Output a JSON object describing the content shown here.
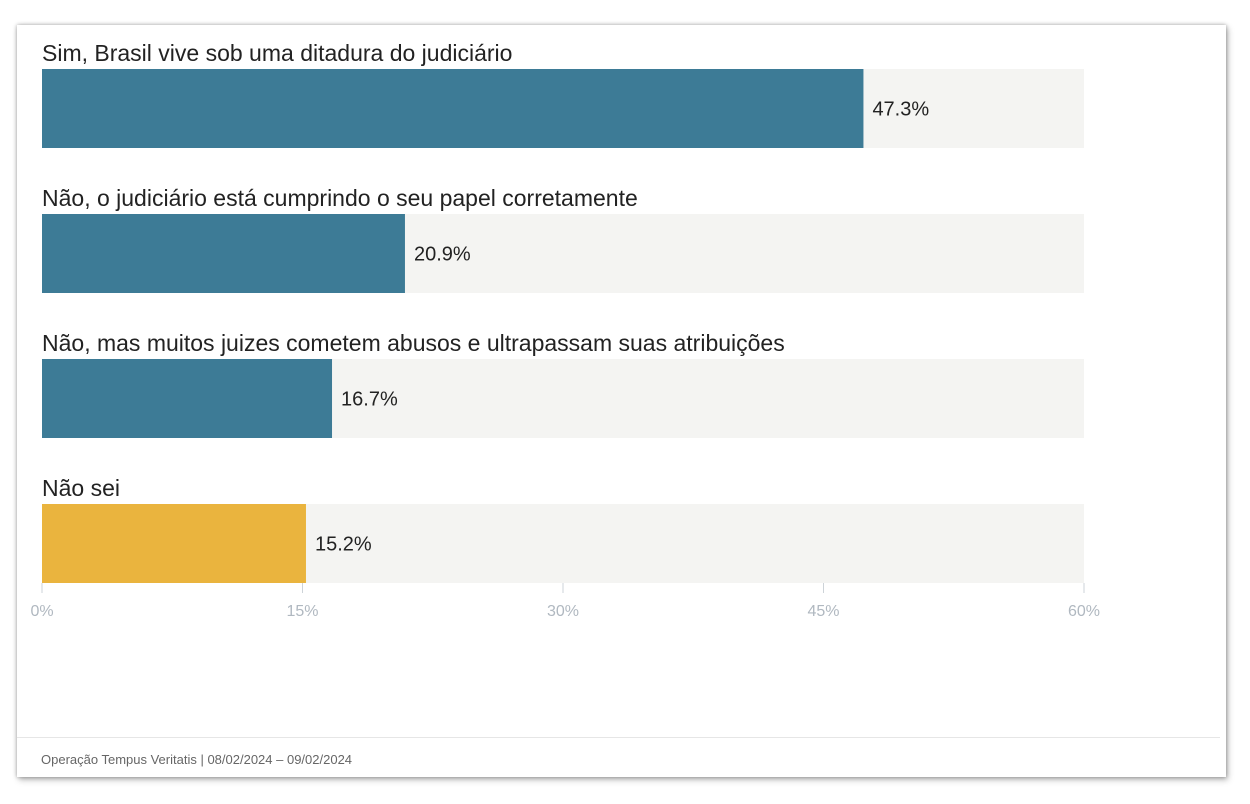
{
  "chart_data": {
    "type": "bar",
    "orientation": "horizontal",
    "categories": [
      "Sim, Brasil vive sob uma ditadura do judiciário",
      "Não, o judiciário está cumprindo o seu papel corretamente",
      "Não, mas muitos juizes cometem abusos e ultrapassam suas atribuições",
      "Não sei"
    ],
    "values": [
      47.3,
      20.9,
      16.7,
      15.2
    ],
    "value_labels": [
      "47.3%",
      "20.9%",
      "16.7%",
      "15.2%"
    ],
    "bar_colors": [
      "#3d7b96",
      "#3d7b96",
      "#3d7b96",
      "#eab43e"
    ],
    "track_color": "#f4f4f2",
    "xlim": [
      0,
      60
    ],
    "ticks": [
      0,
      15,
      30,
      45,
      60
    ],
    "tick_labels": [
      "0%",
      "15%",
      "30%",
      "45%",
      "60%"
    ],
    "grid": false
  },
  "footer": {
    "source": "Operação Tempus Veritatis | 08/02/2024 – 09/02/2024"
  }
}
